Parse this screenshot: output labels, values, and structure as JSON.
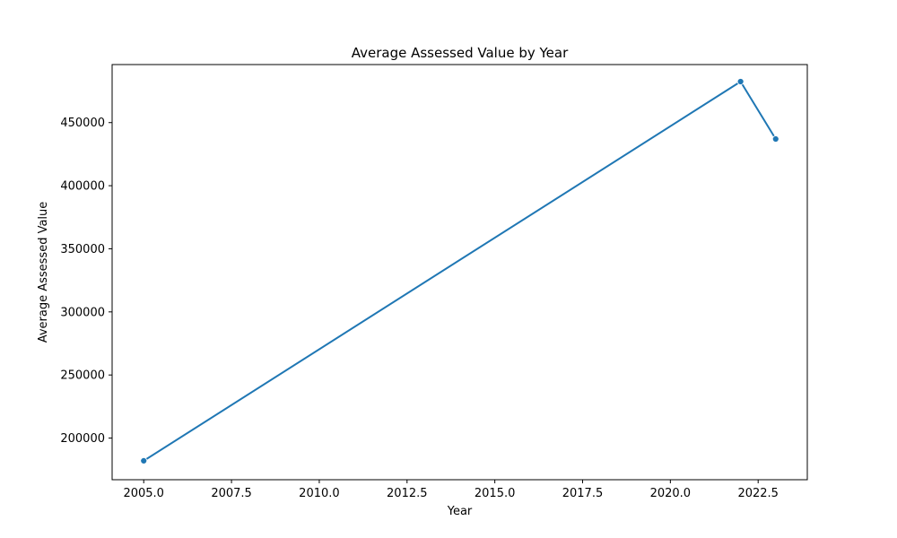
{
  "chart_data": {
    "type": "line",
    "title": "Average Assessed Value by Year",
    "xlabel": "Year",
    "ylabel": "Average Assessed Value",
    "x_ticks": [
      "2005.0",
      "2007.5",
      "2010.0",
      "2012.5",
      "2015.0",
      "2017.5",
      "2020.0",
      "2022.5"
    ],
    "y_ticks": [
      "200000",
      "250000",
      "300000",
      "350000",
      "400000",
      "450000"
    ],
    "xlim": [
      2004.1,
      2023.9
    ],
    "ylim": [
      167000,
      496000
    ],
    "grid": false,
    "series": [
      {
        "color": "#1f77b4",
        "points": [
          {
            "x": 2005,
            "y": 182000
          },
          {
            "x": 2022,
            "y": 482500
          },
          {
            "x": 2023,
            "y": 437000
          }
        ]
      }
    ]
  }
}
